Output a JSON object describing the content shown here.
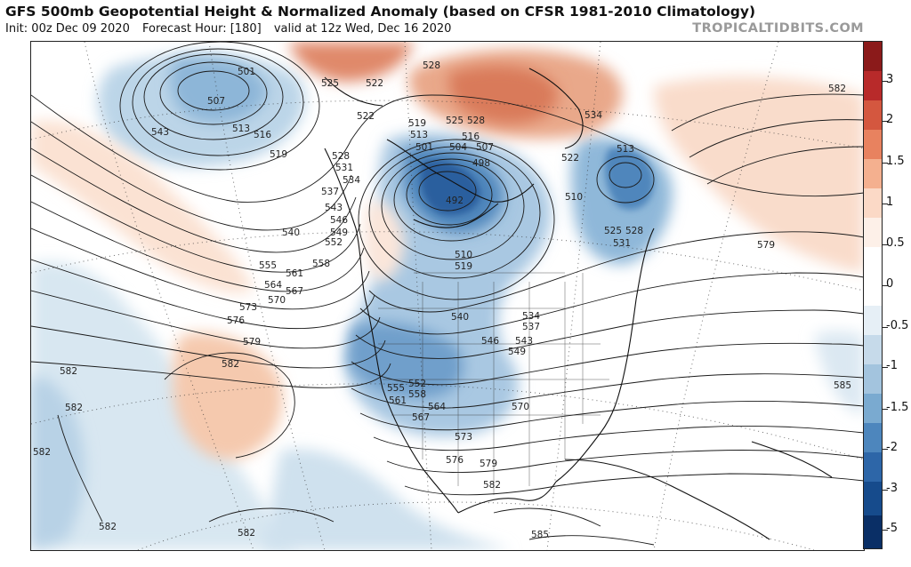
{
  "header": {
    "title": "GFS 500mb Geopotential Height & Normalized Anomaly (based on CFSR 1981-2010 Climatology)",
    "init": "Init: 00z Dec 09 2020",
    "forecast_hour": "Forecast Hour: [180]",
    "valid": "valid at 12z Wed, Dec 16 2020",
    "brand": "TROPICALTIDBITS.COM"
  },
  "colorbar": {
    "labels": [
      "3",
      "2",
      "1.5",
      "1",
      "0.5",
      "0",
      "-0.5",
      "-1",
      "-1.5",
      "-2",
      "-3",
      "-5"
    ],
    "colors": [
      "#8b1a1a",
      "#b82a2a",
      "#d4573f",
      "#e8825f",
      "#f4b08f",
      "#fbd9c6",
      "#fdf0e8",
      "#ffffff",
      "#ffffff",
      "#e6eff6",
      "#c6daea",
      "#a3c4de",
      "#7aaad0",
      "#4d86bd",
      "#2d66a8",
      "#164b8c",
      "#0a2f66"
    ]
  },
  "contour_labels": {
    "alaska_low": [
      "501",
      "507",
      "513",
      "516",
      "519",
      "543"
    ],
    "west_coast": [
      "525",
      "528",
      "531",
      "534",
      "537",
      "543",
      "546",
      "549",
      "552",
      "540",
      "555",
      "558",
      "561",
      "564",
      "567",
      "570",
      "573",
      "576",
      "579",
      "582"
    ],
    "hudson_low": [
      "528",
      "522",
      "522",
      "519",
      "513",
      "525",
      "528",
      "516",
      "501",
      "504",
      "507",
      "498",
      "492",
      "510",
      "510",
      "519",
      "534",
      "522",
      "513"
    ],
    "eastern_canada": [
      "525",
      "528",
      "531",
      "579",
      "582",
      "585"
    ],
    "us": [
      "540",
      "534",
      "537",
      "546",
      "543",
      "549",
      "555",
      "552",
      "561",
      "558",
      "564",
      "567",
      "570",
      "573",
      "576",
      "579",
      "582",
      "585"
    ],
    "pacific": [
      "582",
      "582",
      "582",
      "582",
      "582"
    ]
  }
}
